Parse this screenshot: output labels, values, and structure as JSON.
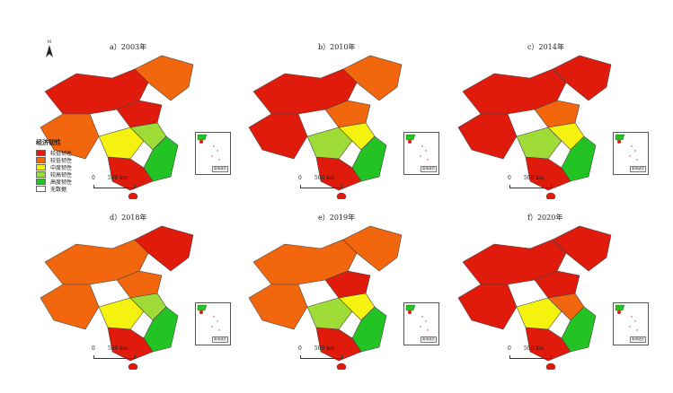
{
  "legend": {
    "title": "经济韧性",
    "items": [
      {
        "label": "较低韧性",
        "color": "#e01b0c"
      },
      {
        "label": "较低韧性",
        "color": "#f2660e"
      },
      {
        "label": "中度韧性",
        "color": "#f5f20f"
      },
      {
        "label": "较高韧性",
        "color": "#9fdc37"
      },
      {
        "label": "高度韧性",
        "color": "#22c322"
      },
      {
        "label": "无数据",
        "color": "#ffffff"
      }
    ]
  },
  "north_label": "N",
  "scale_labels": {
    "zero": "0",
    "distance": "500 km"
  },
  "inset_label": "南海诸岛",
  "panels": [
    {
      "title": "a）2003年",
      "palette": [
        "#e01b0c",
        "#f2660e",
        "#f2660e",
        "#e01b0c",
        "#f5f20f",
        "#9fdc37",
        "#22c322",
        "#e01b0c"
      ]
    },
    {
      "title": "b）2010年",
      "palette": [
        "#e01b0c",
        "#e01b0c",
        "#f2660e",
        "#f2660e",
        "#9fdc37",
        "#f5f20f",
        "#22c322",
        "#e01b0c"
      ]
    },
    {
      "title": "c）2014年",
      "palette": [
        "#e01b0c",
        "#e01b0c",
        "#e01b0c",
        "#f2660e",
        "#9fdc37",
        "#f5f20f",
        "#22c322",
        "#e01b0c"
      ]
    },
    {
      "title": "d）2018年",
      "palette": [
        "#f2660e",
        "#f2660e",
        "#e01b0c",
        "#f2660e",
        "#f5f20f",
        "#9fdc37",
        "#22c322",
        "#e01b0c"
      ]
    },
    {
      "title": "e）2019年",
      "palette": [
        "#f2660e",
        "#f2660e",
        "#f2660e",
        "#e01b0c",
        "#9fdc37",
        "#f5f20f",
        "#22c322",
        "#e01b0c"
      ]
    },
    {
      "title": "f）2020年",
      "palette": [
        "#e01b0c",
        "#e01b0c",
        "#e01b0c",
        "#e01b0c",
        "#f5f20f",
        "#f2660e",
        "#22c322",
        "#e01b0c"
      ]
    }
  ]
}
